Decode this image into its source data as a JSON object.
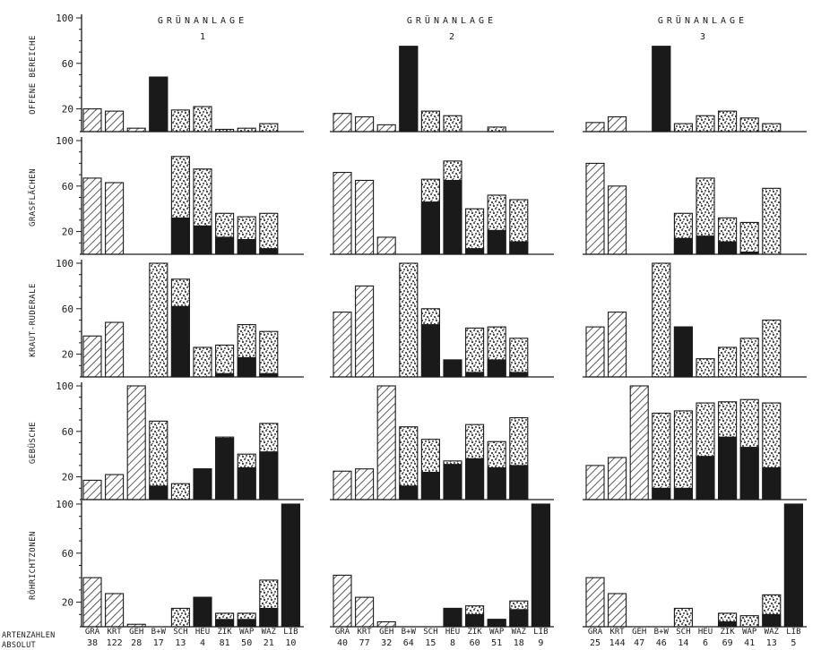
{
  "colors": {
    "ink": "#1a1a1a",
    "hatch": "#333333",
    "stipple": "#3a3a3a",
    "paper": "#ffffff"
  },
  "footer": {
    "label_counts": "ARTENZAHLEN",
    "label_absolute": "ABSOLUT"
  },
  "chart_data": {
    "type": "bar",
    "stacked": true,
    "ylim": [
      0,
      100
    ],
    "yticks": [
      20,
      60,
      100
    ],
    "grid": false,
    "categories": [
      "GRÄ",
      "KRT",
      "GEH",
      "B+W",
      "SCH",
      "HEU",
      "ZIK",
      "WAP",
      "WAZ",
      "LIB"
    ],
    "fill_styles": [
      "hatched",
      "hatched",
      "hatched",
      "stippled",
      "stippled",
      "stippled",
      "stippled",
      "stippled",
      "stippled",
      "stippled"
    ],
    "segments": [
      "solid (dark) part",
      "total"
    ],
    "panel_titles": [
      {
        "word": "GRÜNANLAGE",
        "number": "1"
      },
      {
        "word": "GRÜNANLAGE",
        "number": "2"
      },
      {
        "word": "GRÜNANLAGE",
        "number": "3"
      }
    ],
    "rows": [
      "OFFENE BEREICHE",
      "GRASFLÄCHEN",
      "KRAUT-RUDERALE",
      "GEBÜSCHE",
      "RÖHRICHTZONEN"
    ],
    "absolute_counts": [
      [
        "38",
        "122",
        "28",
        "17",
        "13",
        "4",
        "81",
        "50",
        "21",
        "10"
      ],
      [
        "40",
        "77",
        "32",
        "64",
        "15",
        "8",
        "60",
        "51",
        "18",
        "9"
      ],
      [
        "25",
        "144",
        "47",
        "46",
        "14",
        "6",
        "69",
        "41",
        "13",
        "5"
      ]
    ],
    "data": [
      {
        "totals": [
          [
            20,
            18,
            3,
            48,
            19,
            22,
            2,
            3,
            7,
            0
          ],
          [
            67,
            63,
            0,
            0,
            86,
            75,
            36,
            33,
            36,
            0
          ],
          [
            36,
            48,
            0,
            100,
            86,
            26,
            28,
            46,
            40,
            0
          ],
          [
            17,
            22,
            100,
            69,
            14,
            27,
            55,
            40,
            67,
            0
          ],
          [
            40,
            27,
            2,
            0,
            15,
            24,
            11,
            11,
            38,
            100
          ]
        ],
        "solid": [
          [
            0,
            0,
            0,
            48,
            0,
            0,
            0,
            0,
            0,
            0
          ],
          [
            0,
            0,
            0,
            0,
            32,
            25,
            15,
            13,
            5,
            0
          ],
          [
            0,
            0,
            0,
            0,
            62,
            0,
            3,
            17,
            3,
            0
          ],
          [
            0,
            0,
            0,
            12,
            0,
            27,
            54,
            28,
            42,
            0
          ],
          [
            0,
            0,
            0,
            0,
            0,
            24,
            6,
            6,
            15,
            100
          ]
        ]
      },
      {
        "totals": [
          [
            16,
            13,
            6,
            75,
            18,
            14,
            0,
            4,
            0,
            0
          ],
          [
            72,
            65,
            15,
            0,
            66,
            82,
            40,
            52,
            48,
            0
          ],
          [
            57,
            80,
            0,
            100,
            60,
            15,
            43,
            44,
            34,
            0
          ],
          [
            25,
            27,
            100,
            64,
            53,
            34,
            66,
            51,
            72,
            0
          ],
          [
            42,
            24,
            4,
            0,
            0,
            15,
            17,
            6,
            21,
            100
          ]
        ],
        "solid": [
          [
            0,
            0,
            0,
            75,
            0,
            0,
            0,
            0,
            0,
            0
          ],
          [
            0,
            0,
            0,
            0,
            46,
            65,
            5,
            21,
            11,
            0
          ],
          [
            0,
            0,
            0,
            0,
            46,
            15,
            4,
            15,
            4,
            0
          ],
          [
            0,
            0,
            0,
            12,
            24,
            31,
            36,
            28,
            30,
            0
          ],
          [
            0,
            0,
            0,
            0,
            0,
            15,
            10,
            6,
            14,
            100
          ]
        ]
      },
      {
        "totals": [
          [
            8,
            13,
            0,
            75,
            7,
            14,
            18,
            12,
            7,
            0
          ],
          [
            80,
            60,
            0,
            0,
            36,
            67,
            32,
            28,
            58,
            0
          ],
          [
            44,
            57,
            0,
            100,
            44,
            16,
            26,
            34,
            50,
            0
          ],
          [
            30,
            37,
            100,
            76,
            78,
            85,
            86,
            88,
            85,
            0
          ],
          [
            40,
            27,
            0,
            0,
            15,
            0,
            11,
            9,
            26,
            100
          ]
        ],
        "solid": [
          [
            0,
            0,
            0,
            75,
            0,
            0,
            0,
            0,
            0,
            0
          ],
          [
            0,
            0,
            0,
            0,
            14,
            16,
            11,
            2,
            0,
            0
          ],
          [
            0,
            0,
            0,
            0,
            44,
            0,
            0,
            0,
            0,
            0
          ],
          [
            0,
            0,
            0,
            10,
            10,
            38,
            55,
            46,
            28,
            0
          ],
          [
            0,
            0,
            0,
            0,
            0,
            0,
            4,
            0,
            10,
            100
          ]
        ]
      }
    ]
  }
}
